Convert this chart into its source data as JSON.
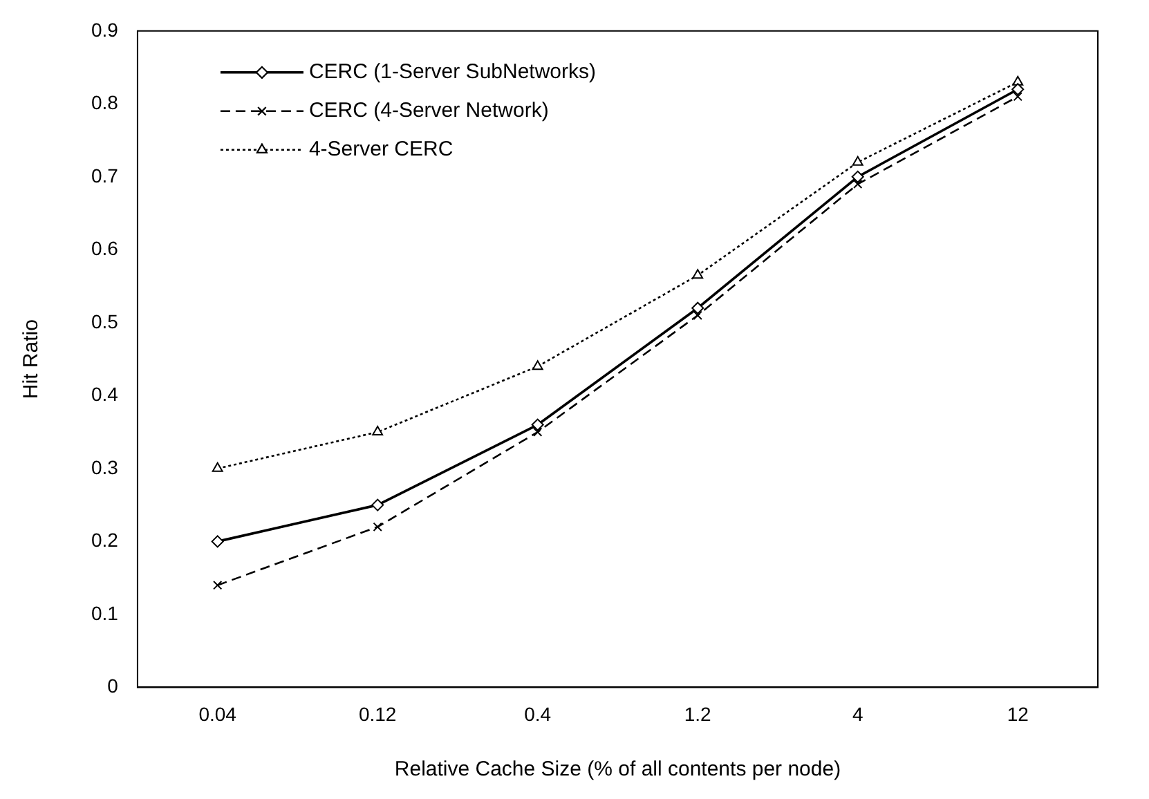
{
  "chart_data": {
    "type": "line",
    "xlabel": "Relative Cache Size (% of all contents per node)",
    "ylabel": "Hit Ratio",
    "categories": [
      "0.04",
      "0.12",
      "0.4",
      "1.2",
      "4",
      "12"
    ],
    "series": [
      {
        "name": "CERC (1-Server SubNetworks)",
        "color": "#000000",
        "values": [
          0.2,
          0.25,
          0.36,
          0.52,
          0.7,
          0.82
        ],
        "marker": "diamond",
        "line_style": "solid"
      },
      {
        "name": "CERC (4-Server Network)",
        "color": "#000000",
        "values": [
          0.14,
          0.22,
          0.35,
          0.51,
          0.69,
          0.81
        ],
        "marker": "cross",
        "line_style": "dashed"
      },
      {
        "name": "4-Server CERC",
        "color": "#000000",
        "values": [
          0.3,
          0.35,
          0.44,
          0.565,
          0.72,
          0.83
        ],
        "marker": "triangle",
        "line_style": "dotted"
      }
    ],
    "ylim": [
      0,
      0.9
    ],
    "yticks": [
      0,
      0.1,
      0.2,
      0.3,
      0.4,
      0.5,
      0.6,
      0.7,
      0.8,
      0.9
    ],
    "grid": false,
    "legend": "top left"
  }
}
